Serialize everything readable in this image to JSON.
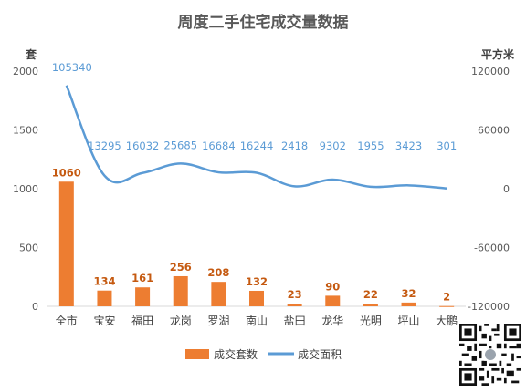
{
  "chart_data": {
    "type": "bar+line",
    "title": "周度二手住宅成交量数据",
    "ylabel_left": "套",
    "ylabel_right": "平方米",
    "categories": [
      "全市",
      "宝安",
      "福田",
      "龙岗",
      "罗湖",
      "南山",
      "盐田",
      "龙华",
      "光明",
      "坪山",
      "大鹏"
    ],
    "series": [
      {
        "name": "成交套数",
        "type": "bar",
        "axis": "left",
        "color": "#ED7D31",
        "values": [
          1060,
          134,
          161,
          256,
          208,
          132,
          23,
          90,
          22,
          32,
          2
        ]
      },
      {
        "name": "成交面积",
        "type": "line",
        "axis": "right",
        "color": "#5B9BD5",
        "values": [
          105340,
          13295,
          16032,
          25685,
          16684,
          16244,
          2418,
          9302,
          1955,
          3423,
          301
        ]
      }
    ],
    "ylim_left": [
      0,
      2000
    ],
    "yticks_left": [
      0,
      500,
      1000,
      1500,
      2000
    ],
    "ylim_right": [
      -120000,
      120000
    ],
    "yticks_right": [
      -120000,
      -60000,
      0,
      60000,
      120000
    ],
    "grid": false,
    "legend": "bottom",
    "bar_label_color": "#C55A11",
    "line_label_color": "#5B9BD5"
  }
}
